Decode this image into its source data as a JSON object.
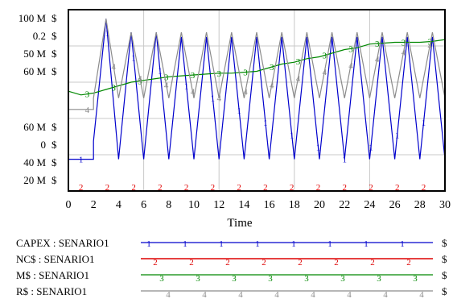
{
  "chart_data": {
    "type": "line",
    "xlabel": "Time",
    "x_ticks": [
      0,
      2,
      4,
      6,
      8,
      10,
      12,
      14,
      16,
      18,
      20,
      22,
      24,
      26,
      28,
      30
    ],
    "xlim": [
      0,
      30
    ],
    "axes": [
      {
        "id": "CAPEX",
        "top": "100 M",
        "bottom": "60 M",
        "unit": "$",
        "range": [
          60,
          100
        ]
      },
      {
        "id": "NC",
        "top": "0.2",
        "bottom": "0",
        "unit": "$",
        "range": [
          0,
          0.2
        ]
      },
      {
        "id": "M",
        "top": "50 M",
        "bottom": "40 M",
        "unit": "$",
        "range": [
          40,
          50
        ]
      },
      {
        "id": "R",
        "top": "60 M",
        "bottom": "20 M",
        "unit": "$",
        "range": [
          20,
          60
        ]
      }
    ],
    "series": [
      {
        "name": "CAPEX : SENARIO1",
        "marker": "1",
        "color": "#0000cc",
        "axis": "CAPEX",
        "values": [
          [
            0,
            67
          ],
          [
            2,
            67
          ],
          [
            2,
            71
          ],
          [
            3,
            98
          ],
          [
            4,
            67
          ],
          [
            5,
            95
          ],
          [
            6,
            67
          ],
          [
            7,
            95
          ],
          [
            8,
            67
          ],
          [
            9,
            94
          ],
          [
            10,
            67
          ],
          [
            11,
            94
          ],
          [
            12,
            67
          ],
          [
            13,
            94
          ],
          [
            14,
            67
          ],
          [
            15,
            94
          ],
          [
            16,
            67
          ],
          [
            17,
            94
          ],
          [
            18,
            67
          ],
          [
            19,
            94
          ],
          [
            20,
            67
          ],
          [
            21,
            94
          ],
          [
            22,
            67
          ],
          [
            23,
            94
          ],
          [
            24,
            67
          ],
          [
            25,
            94
          ],
          [
            26,
            67
          ],
          [
            27,
            94
          ],
          [
            28,
            67
          ],
          [
            29,
            94
          ],
          [
            30,
            67
          ]
        ]
      },
      {
        "name": "NC$ : SENARIO1",
        "marker": "2",
        "color": "#dd0000",
        "axis": "NC",
        "values": [
          [
            0,
            0
          ],
          [
            30,
            0
          ]
        ]
      },
      {
        "name": "M$ : SENARIO1",
        "marker": "3",
        "color": "#008800",
        "axis": "M",
        "values": [
          [
            0,
            45.5
          ],
          [
            1,
            45.3
          ],
          [
            2,
            45.4
          ],
          [
            3,
            45.6
          ],
          [
            4,
            45.8
          ],
          [
            5,
            46.0
          ],
          [
            6,
            46.1
          ],
          [
            7,
            46.2
          ],
          [
            8,
            46.3
          ],
          [
            9,
            46.35
          ],
          [
            10,
            46.4
          ],
          [
            11,
            46.45
          ],
          [
            12,
            46.5
          ],
          [
            13,
            46.5
          ],
          [
            14,
            46.55
          ],
          [
            15,
            46.6
          ],
          [
            16,
            46.8
          ],
          [
            17,
            47.0
          ],
          [
            18,
            47.1
          ],
          [
            19,
            47.3
          ],
          [
            20,
            47.4
          ],
          [
            21,
            47.6
          ],
          [
            22,
            47.8
          ],
          [
            23,
            47.9
          ],
          [
            24,
            48.1
          ],
          [
            25,
            48.15
          ],
          [
            26,
            48.2
          ],
          [
            27,
            48.2
          ],
          [
            28,
            48.2
          ],
          [
            29,
            48.25
          ],
          [
            30,
            48.35
          ]
        ]
      },
      {
        "name": "R$ : SENARIO1",
        "marker": "4",
        "color": "#8c8c8c",
        "axis": "R",
        "values": [
          [
            0,
            38
          ],
          [
            2,
            38
          ],
          [
            2,
            40.5
          ],
          [
            3,
            58
          ],
          [
            4,
            40.5
          ],
          [
            5,
            55
          ],
          [
            6,
            40.5
          ],
          [
            7,
            55
          ],
          [
            8,
            40.5
          ],
          [
            9,
            55
          ],
          [
            10,
            40.5
          ],
          [
            11,
            55
          ],
          [
            12,
            40.5
          ],
          [
            13,
            55
          ],
          [
            14,
            40.5
          ],
          [
            15,
            55
          ],
          [
            16,
            40.5
          ],
          [
            17,
            55
          ],
          [
            18,
            40.5
          ],
          [
            19,
            55
          ],
          [
            20,
            40.5
          ],
          [
            21,
            55
          ],
          [
            22,
            40.5
          ],
          [
            23,
            55
          ],
          [
            24,
            40.5
          ],
          [
            25,
            55
          ],
          [
            26,
            40.5
          ],
          [
            27,
            55
          ],
          [
            28,
            40.5
          ],
          [
            29,
            55
          ],
          [
            30,
            40.5
          ]
        ]
      }
    ],
    "tick_labels": {
      "CAPEX": [
        {
          "value": 100,
          "text": "100 M"
        },
        {
          "value": 60,
          "text": "60 M"
        }
      ],
      "NC": [
        {
          "value": 0.2,
          "text": "0.2"
        },
        {
          "value": 0,
          "text": "0"
        }
      ],
      "M": [
        {
          "value": 50,
          "text": "50 M"
        },
        {
          "value": 40,
          "text": "40 M"
        }
      ],
      "R": [
        {
          "value": 60,
          "text": "60 M"
        },
        {
          "value": 20,
          "text": "20 M"
        }
      ]
    },
    "gridlines": true,
    "legend_position": "bottom",
    "unit_label": "$"
  }
}
